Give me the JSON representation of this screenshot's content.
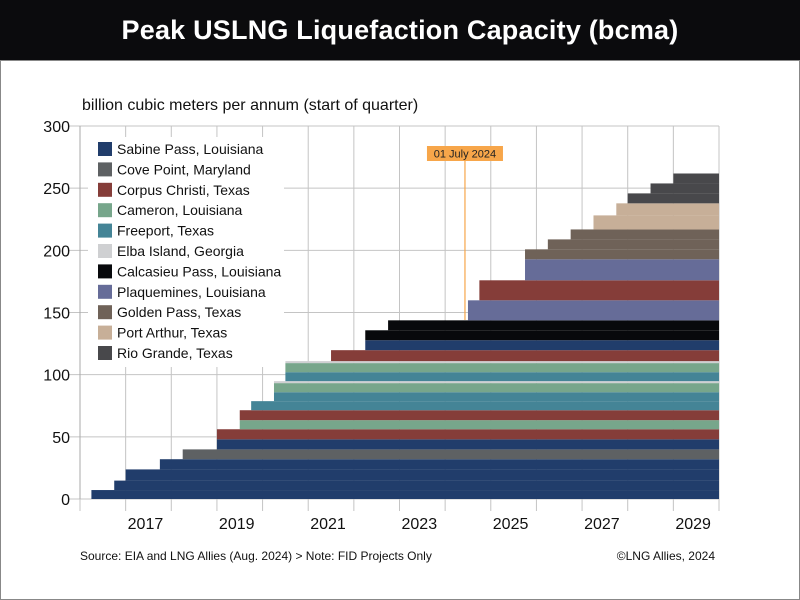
{
  "title": "Peak USLNG Liquefaction Capacity (bcma)",
  "chart_data": {
    "type": "area",
    "stacked": true,
    "step": true,
    "title": "Peak USLNG Liquefaction Capacity (bcma)",
    "ylabel": "billion cubic meters per annum (start of quarter)",
    "xlabel": "",
    "ylim": [
      0,
      300
    ],
    "xlim": [
      2016,
      2030
    ],
    "yticks": [
      0,
      50,
      100,
      150,
      200,
      250,
      300
    ],
    "xtick_labels": [
      "2017",
      "2019",
      "2021",
      "2023",
      "2025",
      "2027",
      "2029"
    ],
    "xtick_values": [
      2017,
      2019,
      2021,
      2023,
      2025,
      2027,
      2029
    ],
    "grid": true,
    "legend_position": "top-left",
    "legend": [
      {
        "name": "Sabine Pass, Louisiana",
        "color": "#213d6b"
      },
      {
        "name": "Cove Point, Maryland",
        "color": "#5e6163"
      },
      {
        "name": "Corpus Christi, Texas",
        "color": "#853d39"
      },
      {
        "name": "Cameron, Louisiana",
        "color": "#77a68b"
      },
      {
        "name": "Freeport, Texas",
        "color": "#448496"
      },
      {
        "name": "Elba Island, Georgia",
        "color": "#cfd0d2"
      },
      {
        "name": "Calcasieu Pass, Louisiana",
        "color": "#08090c"
      },
      {
        "name": "Plaquemines, Louisiana",
        "color": "#666c98"
      },
      {
        "name": "Golden Pass, Texas",
        "color": "#6f6258"
      },
      {
        "name": "Port Arthur, Texas",
        "color": "#c7af98"
      },
      {
        "name": "Rio Grande, Texas",
        "color": "#48484b"
      }
    ],
    "layers": [
      {
        "project": "Sabine Pass, Louisiana",
        "start": 2016.25,
        "value": 7.2
      },
      {
        "project": "Sabine Pass, Louisiana",
        "start": 2016.75,
        "value": 7.6
      },
      {
        "project": "Sabine Pass, Louisiana",
        "start": 2017.0,
        "value": 9.0
      },
      {
        "project": "Sabine Pass, Louisiana",
        "start": 2017.75,
        "value": 8.2
      },
      {
        "project": "Cove Point, Maryland",
        "start": 2018.25,
        "value": 7.9
      },
      {
        "project": "Sabine Pass, Louisiana",
        "start": 2019.0,
        "value": 8.1
      },
      {
        "project": "Corpus Christi, Texas",
        "start": 2019.0,
        "value": 8.1
      },
      {
        "project": "Cameron, Louisiana",
        "start": 2019.5,
        "value": 7.3
      },
      {
        "project": "Corpus Christi, Texas",
        "start": 2019.5,
        "value": 8.0
      },
      {
        "project": "Freeport, Texas",
        "start": 2019.75,
        "value": 7.3
      },
      {
        "project": "Freeport, Texas",
        "start": 2020.25,
        "value": 7.2
      },
      {
        "project": "Cameron, Louisiana",
        "start": 2020.25,
        "value": 7.3
      },
      {
        "project": "Elba Island, Georgia",
        "start": 2020.25,
        "value": 1.6
      },
      {
        "project": "Freeport, Texas",
        "start": 2020.5,
        "value": 7.2
      },
      {
        "project": "Cameron, Louisiana",
        "start": 2020.5,
        "value": 7.3
      },
      {
        "project": "Elba Island, Georgia",
        "start": 2020.5,
        "value": 1.6
      },
      {
        "project": "Corpus Christi, Texas",
        "start": 2021.5,
        "value": 8.8
      },
      {
        "project": "Sabine Pass, Louisiana",
        "start": 2022.25,
        "value": 8.0
      },
      {
        "project": "Calcasieu Pass, Louisiana",
        "start": 2022.25,
        "value": 8.0
      },
      {
        "project": "Calcasieu Pass, Louisiana",
        "start": 2022.75,
        "value": 8.0
      },
      {
        "project": "Plaquemines, Louisiana",
        "start": 2024.5,
        "value": 16.1
      },
      {
        "project": "Corpus Christi, Texas",
        "start": 2024.75,
        "value": 16.1
      },
      {
        "project": "Plaquemines, Louisiana",
        "start": 2025.75,
        "value": 16.9
      },
      {
        "project": "Golden Pass, Texas",
        "start": 2025.75,
        "value": 8.0
      },
      {
        "project": "Golden Pass, Texas",
        "start": 2026.25,
        "value": 8.0
      },
      {
        "project": "Golden Pass, Texas",
        "start": 2026.75,
        "value": 8.0
      },
      {
        "project": "Port Arthur, Texas",
        "start": 2027.25,
        "value": 11.3
      },
      {
        "project": "Port Arthur, Texas",
        "start": 2027.75,
        "value": 9.7
      },
      {
        "project": "Rio Grande, Texas",
        "start": 2028.0,
        "value": 8.0
      },
      {
        "project": "Rio Grande, Texas",
        "start": 2028.5,
        "value": 8.0
      },
      {
        "project": "Rio Grande, Texas",
        "start": 2029.0,
        "value": 8.0
      }
    ],
    "totals_approx": [
      {
        "date": 2016.25,
        "total": 7
      },
      {
        "date": 2017.0,
        "total": 24
      },
      {
        "date": 2018.25,
        "total": 40
      },
      {
        "date": 2019.5,
        "total": 72
      },
      {
        "date": 2020.5,
        "total": 111
      },
      {
        "date": 2021.5,
        "total": 120
      },
      {
        "date": 2022.75,
        "total": 144
      },
      {
        "date": 2024.75,
        "total": 176
      },
      {
        "date": 2026.75,
        "total": 217
      },
      {
        "date": 2027.75,
        "total": 238
      },
      {
        "date": 2029.0,
        "total": 262
      }
    ],
    "annotation": {
      "label": "01 July 2024",
      "x": 2024.5,
      "color": "#f7a64a"
    }
  },
  "footer": {
    "source": "Source: EIA and LNG Allies (Aug. 2024) > Note: FID Projects Only",
    "copyright": "©LNG Allies, 2024"
  }
}
